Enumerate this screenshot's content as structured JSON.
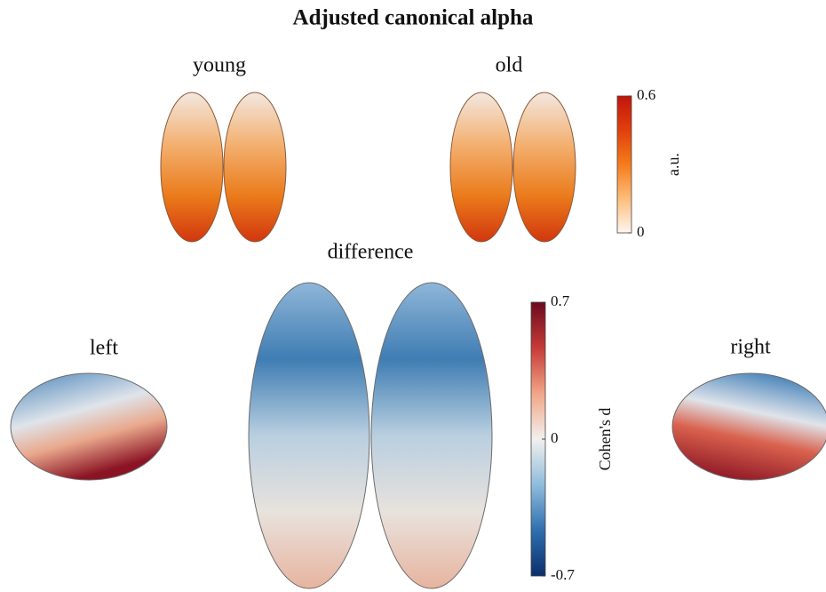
{
  "title": "Adjusted canonical alpha",
  "panels": {
    "young": "young",
    "old": "old",
    "difference": "difference",
    "left": "left",
    "right": "right"
  },
  "colorbars": [
    {
      "label": "a.u.",
      "lim": [
        0,
        0.6
      ],
      "ticks": [
        0,
        0.6
      ],
      "colors": [
        "#fdf6ef",
        "#fdbd7a",
        "#f57c1a",
        "#e0400c",
        "#c2150b"
      ]
    },
    {
      "label": "Cohen's d",
      "lim": [
        -0.7,
        0.7
      ],
      "ticks": [
        -0.7,
        0,
        0.7
      ],
      "colors": [
        "#0b2f6b",
        "#2f6faf",
        "#8fbcdc",
        "#f2f0ee",
        "#f1a586",
        "#c53b37",
        "#6b0a1e"
      ]
    }
  ]
}
